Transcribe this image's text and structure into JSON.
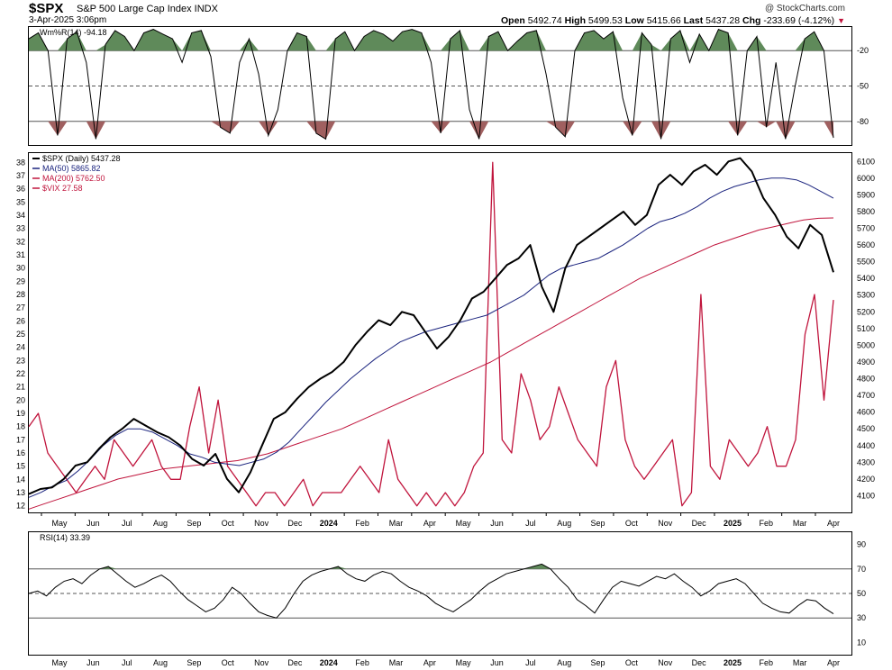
{
  "header": {
    "symbol": "$SPX",
    "name": "S&P 500 Large Cap Index INDX",
    "date": "3-Apr-2025 3:06pm",
    "logo": "@ StockCharts.com",
    "open_label": "Open",
    "open": "5492.74",
    "high_label": "High",
    "high": "5499.53",
    "low_label": "Low",
    "low": "5415.66",
    "last_label": "Last",
    "last": "5437.28",
    "chg_label": "Chg",
    "chg": "-233.69 (-4.12%)",
    "chg_icon": "down-triangle-icon"
  },
  "colors": {
    "price": "#000000",
    "ma50": "#1a237e",
    "ma200": "#c0143c",
    "vix": "#c0143c",
    "overbought": "#5f8a5a",
    "oversold": "#a06060"
  },
  "chart_data": [
    {
      "type": "line",
      "title": "Wm%R(14) -94.18",
      "ylim": [
        -100,
        0
      ],
      "y_ticks": [
        "-20",
        "-50",
        "-80"
      ],
      "series": [
        {
          "name": "Wm%R(14)",
          "last": -94.18,
          "values": [
            -10,
            -5,
            -20,
            -92,
            -10,
            -4,
            -30,
            -95,
            -15,
            -3,
            -8,
            -20,
            -5,
            -2,
            -6,
            -10,
            -30,
            -5,
            -3,
            -25,
            -85,
            -90,
            -30,
            -10,
            -40,
            -92,
            -70,
            -20,
            -5,
            -8,
            -90,
            -95,
            -10,
            -4,
            -20,
            -8,
            -3,
            -6,
            -12,
            -4,
            -2,
            -5,
            -30,
            -90,
            -10,
            -3,
            -70,
            -95,
            -8,
            -4,
            -20,
            -12,
            -5,
            -3,
            -40,
            -85,
            -93,
            -20,
            -5,
            -3,
            -10,
            -4,
            -60,
            -92,
            -5,
            -15,
            -95,
            -10,
            -3,
            -30,
            -6,
            -20,
            -2,
            -5,
            -92,
            -20,
            -8,
            -85,
            -30,
            -95,
            -50,
            -10,
            -4,
            -20,
            -94
          ]
        }
      ],
      "x_labels": [
        "May",
        "Jun",
        "Jul",
        "Aug",
        "Sep",
        "Oct",
        "Nov",
        "Dec",
        "2024",
        "Feb",
        "Mar",
        "Apr",
        "May",
        "Jun",
        "Jul",
        "Aug",
        "Sep",
        "Oct",
        "Nov",
        "Dec",
        "2025",
        "Feb",
        "Mar",
        "Apr"
      ]
    },
    {
      "type": "line",
      "title": "$SPX (Daily) 5437.28",
      "ylim": [
        4000,
        6150
      ],
      "y_ticks": [
        "6100",
        "6000",
        "5900",
        "5800",
        "5700",
        "5600",
        "5500",
        "5400",
        "5300",
        "5200",
        "5100",
        "5000",
        "4900",
        "4800",
        "4700",
        "4600",
        "4500",
        "4400",
        "4300",
        "4200",
        "4100"
      ],
      "y2lim": [
        11.5,
        38.7
      ],
      "y2_ticks": [
        "38",
        "37",
        "36",
        "35",
        "34",
        "33",
        "32",
        "31",
        "30",
        "29",
        "28",
        "27",
        "26",
        "25",
        "24",
        "23",
        "22",
        "21",
        "20",
        "19",
        "18",
        "17",
        "16",
        "15",
        "14",
        "13",
        "12"
      ],
      "legend": [
        {
          "name": "$SPX (Daily) 5437.28",
          "color": "#000000"
        },
        {
          "name": "MA(50) 5865.82",
          "color": "#1a237e"
        },
        {
          "name": "MA(200) 5762.50",
          "color": "#c0143c"
        },
        {
          "name": "$VIX 27.58",
          "color": "#c0143c"
        }
      ],
      "series": [
        {
          "name": "$SPX",
          "axis": "left",
          "values": [
            4110,
            4140,
            4150,
            4200,
            4280,
            4300,
            4380,
            4450,
            4500,
            4560,
            4520,
            4480,
            4450,
            4400,
            4320,
            4280,
            4350,
            4200,
            4120,
            4240,
            4400,
            4560,
            4600,
            4680,
            4750,
            4800,
            4840,
            4900,
            5000,
            5080,
            5150,
            5120,
            5200,
            5180,
            5080,
            4980,
            5050,
            5150,
            5280,
            5320,
            5400,
            5480,
            5520,
            5600,
            5350,
            5200,
            5460,
            5600,
            5650,
            5700,
            5750,
            5800,
            5720,
            5780,
            5960,
            6020,
            5960,
            6040,
            6080,
            6020,
            6100,
            6120,
            6040,
            5880,
            5780,
            5650,
            5580,
            5720,
            5660,
            5437
          ]
        },
        {
          "name": "MA(50)",
          "axis": "left",
          "values": [
            4090,
            4120,
            4160,
            4190,
            4250,
            4320,
            4400,
            4460,
            4500,
            4500,
            4480,
            4440,
            4400,
            4350,
            4330,
            4300,
            4290,
            4280,
            4300,
            4320,
            4360,
            4420,
            4500,
            4580,
            4660,
            4730,
            4800,
            4860,
            4920,
            4970,
            5020,
            5050,
            5080,
            5100,
            5120,
            5140,
            5160,
            5180,
            5220,
            5260,
            5300,
            5360,
            5420,
            5460,
            5480,
            5500,
            5520,
            5560,
            5600,
            5650,
            5700,
            5740,
            5760,
            5790,
            5830,
            5880,
            5920,
            5950,
            5970,
            5990,
            6000,
            6000,
            5990,
            5960,
            5920,
            5880
          ]
        },
        {
          "name": "MA(200)",
          "axis": "left",
          "values": [
            4020,
            4050,
            4080,
            4110,
            4140,
            4170,
            4200,
            4220,
            4240,
            4260,
            4270,
            4280,
            4290,
            4300,
            4310,
            4330,
            4350,
            4380,
            4410,
            4440,
            4470,
            4500,
            4540,
            4580,
            4620,
            4660,
            4700,
            4740,
            4780,
            4820,
            4860,
            4900,
            4950,
            5000,
            5050,
            5100,
            5150,
            5200,
            5250,
            5300,
            5350,
            5400,
            5440,
            5480,
            5520,
            5560,
            5600,
            5630,
            5660,
            5690,
            5710,
            5730,
            5750,
            5760,
            5762
          ]
        },
        {
          "name": "$VIX",
          "axis": "right",
          "values": [
            18,
            19,
            16,
            15,
            14,
            13,
            14,
            15,
            14,
            17,
            16,
            15,
            16,
            17,
            15,
            14,
            14,
            18,
            21,
            16,
            20,
            15,
            14,
            13,
            12,
            13,
            13,
            12,
            13,
            14,
            12,
            13,
            13,
            13,
            14,
            15,
            14,
            13,
            17,
            14,
            13,
            12,
            13,
            12,
            13,
            12,
            13,
            15,
            16,
            38,
            17,
            16,
            22,
            20,
            17,
            18,
            21,
            19,
            17,
            16,
            15,
            21,
            23,
            17,
            15,
            14,
            15,
            16,
            17,
            12,
            13,
            28,
            15,
            14,
            17,
            16,
            15,
            16,
            18,
            15,
            15,
            17,
            25,
            28,
            20,
            27.58
          ]
        }
      ],
      "x_labels": [
        "May",
        "Jun",
        "Jul",
        "Aug",
        "Sep",
        "Oct",
        "Nov",
        "Dec",
        "2024",
        "Feb",
        "Mar",
        "Apr",
        "May",
        "Jun",
        "Jul",
        "Aug",
        "Sep",
        "Oct",
        "Nov",
        "Dec",
        "2025",
        "Feb",
        "Mar",
        "Apr"
      ]
    },
    {
      "type": "line",
      "title": "RSI(14) 33.39",
      "ylim": [
        0,
        100
      ],
      "y_ticks": [
        "90",
        "70",
        "50",
        "30",
        "10"
      ],
      "series": [
        {
          "name": "RSI(14)",
          "last": 33.39,
          "values": [
            50,
            52,
            48,
            55,
            60,
            62,
            58,
            65,
            70,
            72,
            66,
            60,
            55,
            58,
            62,
            65,
            60,
            52,
            45,
            40,
            35,
            38,
            45,
            55,
            50,
            42,
            35,
            32,
            30,
            38,
            50,
            60,
            65,
            68,
            70,
            72,
            66,
            62,
            60,
            65,
            68,
            66,
            60,
            55,
            52,
            48,
            42,
            38,
            35,
            40,
            45,
            52,
            58,
            62,
            66,
            68,
            70,
            72,
            74,
            70,
            62,
            55,
            45,
            40,
            34,
            45,
            55,
            60,
            58,
            56,
            60,
            64,
            62,
            66,
            60,
            55,
            48,
            52,
            58,
            60,
            62,
            58,
            50,
            42,
            38,
            35,
            34,
            40,
            45,
            44,
            38,
            33.39
          ]
        }
      ],
      "x_labels": [
        "May",
        "Jun",
        "Jul",
        "Aug",
        "Sep",
        "Oct",
        "Nov",
        "Dec",
        "2024",
        "Feb",
        "Mar",
        "Apr",
        "May",
        "Jun",
        "Jul",
        "Aug",
        "Sep",
        "Oct",
        "Nov",
        "Dec",
        "2025",
        "Feb",
        "Mar",
        "Apr"
      ]
    }
  ]
}
